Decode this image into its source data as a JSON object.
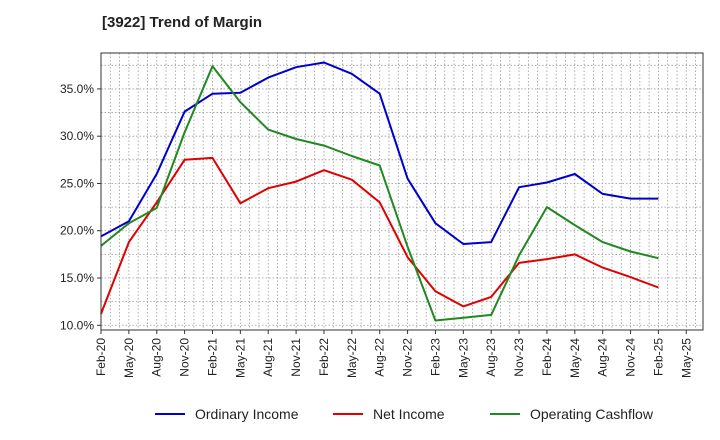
{
  "chart_data": {
    "type": "line",
    "title": "[3922]  Trend of Margin",
    "xlabel": "",
    "ylabel": "",
    "x": [
      "Feb-20",
      "May-20",
      "Aug-20",
      "Nov-20",
      "Feb-21",
      "May-21",
      "Aug-21",
      "Nov-21",
      "Feb-22",
      "May-22",
      "Aug-22",
      "Nov-22",
      "Feb-23",
      "May-23",
      "Aug-23",
      "Nov-23",
      "Feb-24",
      "May-24",
      "Aug-24",
      "Nov-24",
      "Feb-25",
      "May-25"
    ],
    "ylim": [
      9.5,
      38.8
    ],
    "yticks": [
      10.0,
      15.0,
      20.0,
      25.0,
      30.0,
      35.0
    ],
    "ytick_labels": [
      "10.0%",
      "15.0%",
      "20.0%",
      "25.0%",
      "30.0%",
      "35.0%"
    ],
    "grid": true,
    "legend_position": "bottom",
    "series": [
      {
        "name": "Ordinary Income",
        "color": "#0000cc",
        "values": [
          19.4,
          21.0,
          26.0,
          32.6,
          34.5,
          34.6,
          36.2,
          37.3,
          37.8,
          36.6,
          34.5,
          25.5,
          20.8,
          18.6,
          18.8,
          24.6,
          25.1,
          26.0,
          23.9,
          23.4,
          23.4,
          null
        ]
      },
      {
        "name": "Net Income",
        "color": "#e00000",
        "values": [
          11.2,
          18.8,
          23.0,
          27.5,
          27.7,
          22.9,
          24.5,
          25.2,
          26.4,
          25.4,
          23.0,
          17.2,
          13.6,
          12.0,
          13.0,
          16.6,
          17.0,
          17.5,
          16.1,
          15.1,
          14.0,
          null
        ]
      },
      {
        "name": "Operating Cashflow",
        "color": "#228822",
        "values": [
          18.4,
          20.8,
          22.4,
          30.4,
          37.4,
          33.6,
          30.7,
          29.7,
          29.0,
          27.9,
          26.9,
          18.3,
          10.5,
          10.8,
          11.1,
          17.4,
          22.5,
          20.6,
          18.8,
          17.8,
          17.1,
          null
        ]
      }
    ]
  }
}
